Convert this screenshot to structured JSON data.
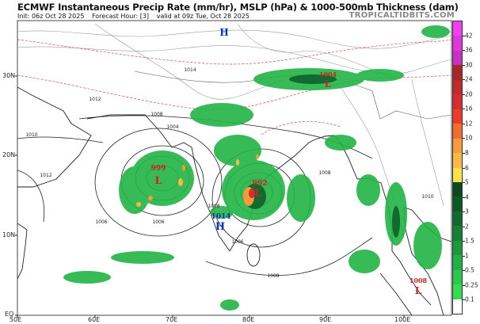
{
  "header": {
    "title": "ECMWF Instantaneous Precip Rate (mm/hr), MSLP (hPa) & 1000-500mb Thickness (dam)",
    "init": "Init: 06z Oct 28 2025",
    "forecast_hour": "Forecast Hour: [3]",
    "valid": "valid at 09z Tue, Oct 28 2025",
    "brand": "TROPICALTIDBITS.COM"
  },
  "axes": {
    "lat_labels": [
      "30N",
      "20N",
      "10N",
      "EQ"
    ],
    "lon_labels": [
      "50E",
      "60E",
      "70E",
      "80E",
      "90E",
      "100E"
    ]
  },
  "colorbar": {
    "labels": [
      "42",
      "36",
      "30",
      "24",
      "20",
      "16",
      "12",
      "10",
      "8",
      "6",
      "5",
      "4",
      "3",
      "2",
      "1.5",
      "1",
      "0.5",
      "0.25",
      "0.1"
    ],
    "colors": [
      "#f23ff0",
      "#e236dc",
      "#c82fc2",
      "#a8262a",
      "#c22a30",
      "#d92a30",
      "#ee3a2a",
      "#f26c2c",
      "#f79a3a",
      "#fbb845",
      "#fde04a",
      "#0b4a1f",
      "#0c5a26",
      "#0f6c2e",
      "#148234",
      "#1a9a3b",
      "#21b043",
      "#2ac84b",
      "#34dc52",
      "#ffffff"
    ]
  },
  "systems": [
    {
      "type": "L",
      "pressure": "999",
      "color": "#d02020"
    },
    {
      "type": "L",
      "pressure": "992",
      "color": "#d02020"
    },
    {
      "type": "H",
      "pressure": "1014",
      "color": "#1030c0"
    },
    {
      "type": "L",
      "pressure": "1004",
      "color": "#d02020"
    },
    {
      "type": "L",
      "pressure": "1008",
      "color": "#d02020"
    },
    {
      "type": "H",
      "pressure": "",
      "color": "#1030c0"
    }
  ],
  "isobar_labels": [
    "1006",
    "1008",
    "1006",
    "1004",
    "1008",
    "1006",
    "1010",
    "1012",
    "1012",
    "1014",
    "1008",
    "1008",
    "1010"
  ]
}
